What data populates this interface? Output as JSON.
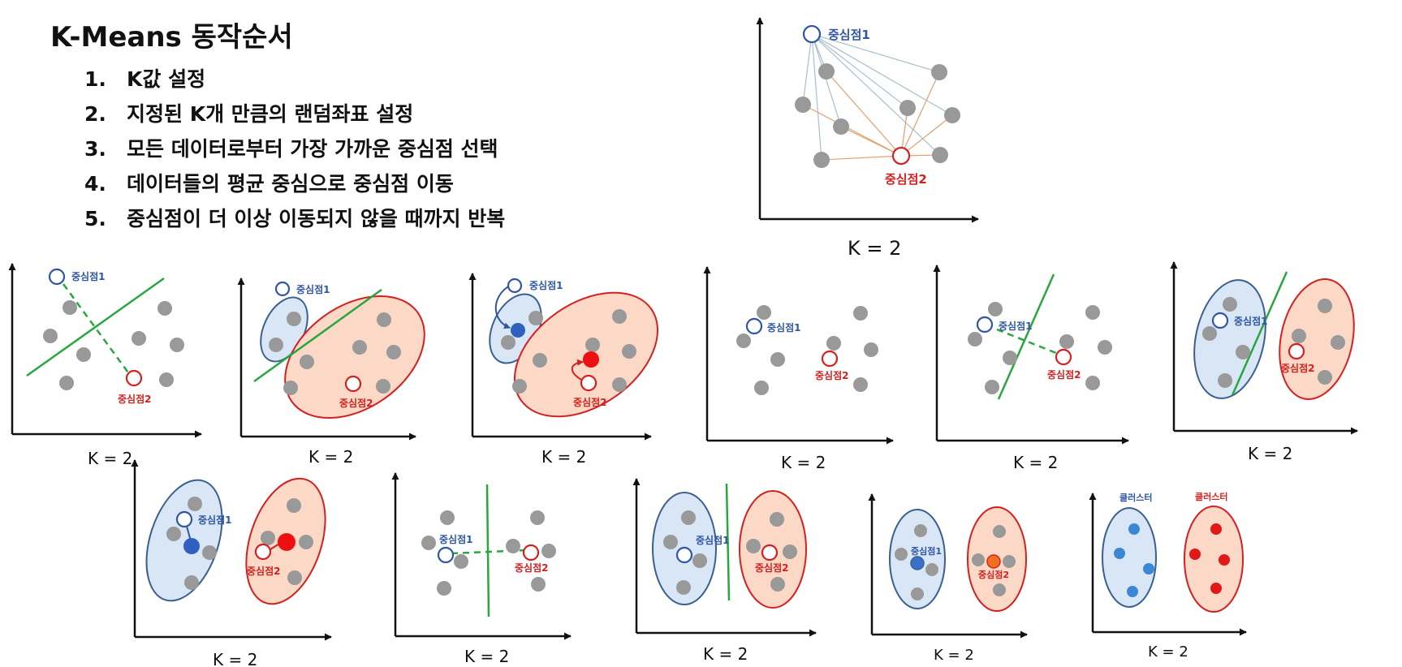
{
  "title": "K-Means 동작순서",
  "steps": [
    {
      "num": "1.",
      "text": "K값 설정"
    },
    {
      "num": "2.",
      "text": "지정된 K개 만큼의 랜덤좌표 설정"
    },
    {
      "num": "3.",
      "text": "모든 데이터로부터 가장 가까운 중심점 선택"
    },
    {
      "num": "4.",
      "text": "데이터들의 평균 중심으로 중심점 이동"
    },
    {
      "num": "5.",
      "text": "중심점이 더 이상 이동되지 않을 때까지 반복"
    }
  ],
  "labels": {
    "k": "K = 2",
    "c1": "중심점1",
    "c2": "중심점2",
    "cluster": "클러스터"
  },
  "colors": {
    "blue": "#2f55a4",
    "red": "#d42020",
    "green": "#2aa640",
    "gray": "#999999",
    "blueFill": "#d8e6f5",
    "blueEdge": "#3a6090",
    "redFill": "#fbd9c6",
    "redEdge": "#d42020",
    "clusterBlue": "#3b87d4",
    "clusterRed": "#e01818",
    "lineBlue": "#a7bfce",
    "lineOrange": "#e0a070"
  }
}
